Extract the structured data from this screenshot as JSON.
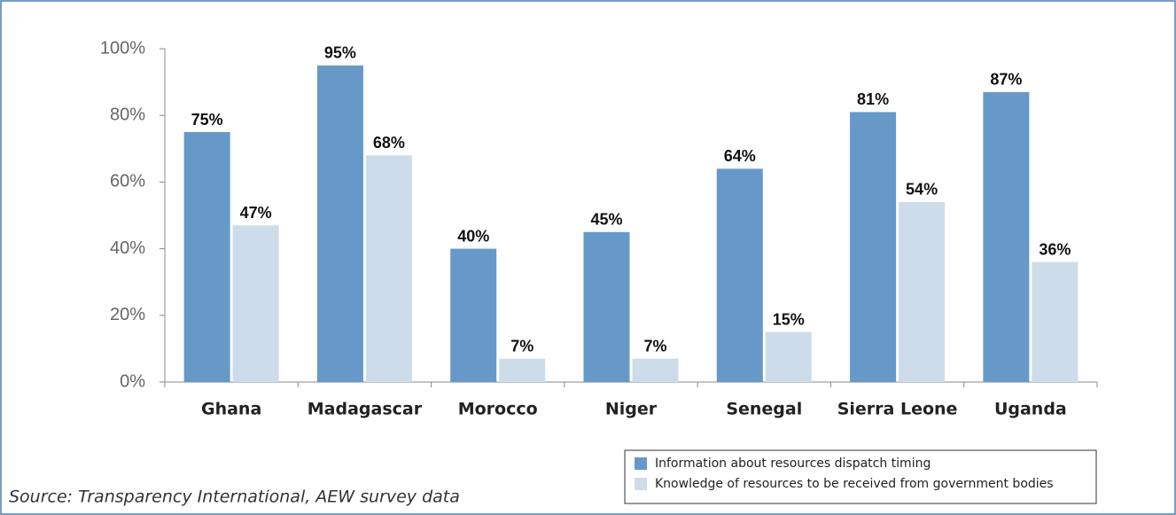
{
  "chart_data": {
    "type": "bar",
    "categories": [
      "Ghana",
      "Madagascar",
      "Morocco",
      "Niger",
      "Senegal",
      "Sierra Leone",
      "Uganda"
    ],
    "series": [
      {
        "name": "Information about resources dispatch timing",
        "color": "#6699c8",
        "values": [
          75,
          95,
          40,
          45,
          64,
          81,
          87
        ],
        "value_labels": [
          "75%",
          "95%",
          "40%",
          "45%",
          "64%",
          "81%",
          "87%"
        ]
      },
      {
        "name": "Knowledge of resources to be received from government bodies",
        "color": "#cddceb",
        "values": [
          47,
          68,
          7,
          7,
          15,
          54,
          36
        ],
        "value_labels": [
          "47%",
          "68%",
          "7%",
          "7%",
          "15%",
          "54%",
          "36%"
        ]
      }
    ],
    "ylim": [
      0,
      100
    ],
    "yticks": [
      {
        "value": 0,
        "label": "0%"
      },
      {
        "value": 20,
        "label": "20%"
      },
      {
        "value": 40,
        "label": "40%"
      },
      {
        "value": 60,
        "label": "60%"
      },
      {
        "value": 80,
        "label": "80%"
      },
      {
        "value": 100,
        "label": "100%"
      }
    ],
    "legend": "bottom-right",
    "source": "Source: Transparency International, AEW survey data"
  }
}
